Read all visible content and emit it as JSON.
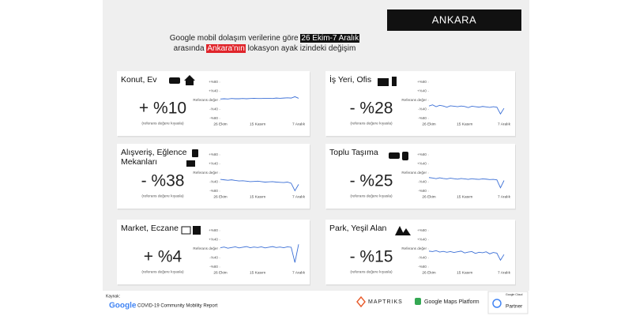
{
  "header": {
    "city": "ANKARA",
    "subtitle": [
      "Google mobil dolaşım verilerine göre ",
      "26 Ekim-7 Aralık",
      "arasında ",
      "Ankara'nın",
      " lokasyon ayak izindeki değişim"
    ]
  },
  "footer": {
    "source_label": "Kaynak:",
    "google": "Google",
    "source": "COVID-19 Community Mobility Report",
    "maptriks": "MAPTRIKS",
    "maps_platform": "Google Maps Platform",
    "cloud": "Google Cloud",
    "partner": "Partner"
  },
  "chart_data": [
    {
      "type": "line",
      "title": "Konut, Ev",
      "headline": "+ %10",
      "note": "(referans değere kıyasla)",
      "categories": [
        "26 Ekim",
        null,
        null,
        null,
        null,
        null,
        null,
        null,
        null,
        null,
        "15 Kasım",
        null,
        null,
        null,
        null,
        null,
        null,
        null,
        null,
        null,
        null,
        "7 Aralık"
      ],
      "series": [
        {
          "color": "#3b6fd6",
          "values": [
            6,
            7,
            6,
            8,
            7,
            7,
            8,
            7,
            8,
            9,
            8,
            8,
            9,
            9,
            8,
            10,
            9,
            10,
            11,
            10,
            16,
            9
          ]
        }
      ],
      "ylim": [
        -80,
        80
      ],
      "yticks": [
        {
          "value": 80,
          "label": "+%80"
        },
        {
          "value": 40,
          "label": "+%40"
        },
        {
          "value": 0,
          "label": "Referans değer"
        },
        {
          "value": -40,
          "label": "-%40"
        },
        {
          "value": -80,
          "label": "-%80"
        }
      ]
    },
    {
      "type": "line",
      "title": "İş Yeri, Ofis",
      "headline": "- %28",
      "note": "(referans değere kıyasla)",
      "categories": [
        "26 Ekim",
        null,
        null,
        null,
        null,
        null,
        null,
        null,
        null,
        null,
        "15 Kasım",
        null,
        null,
        null,
        null,
        null,
        null,
        null,
        null,
        null,
        null,
        "7 Aralık"
      ],
      "series": [
        {
          "color": "#3b6fd6",
          "values": [
            -25,
            -20,
            -28,
            -22,
            -25,
            -30,
            -24,
            -26,
            -28,
            -25,
            -27,
            -32,
            -26,
            -28,
            -30,
            -27,
            -29,
            -31,
            -28,
            -30,
            -60,
            -35
          ]
        }
      ],
      "ylim": [
        -80,
        80
      ],
      "yticks": [
        {
          "value": 80,
          "label": "+%80"
        },
        {
          "value": 40,
          "label": "+%40"
        },
        {
          "value": 0,
          "label": "Referans değer"
        },
        {
          "value": -40,
          "label": "-%40"
        },
        {
          "value": -80,
          "label": "-%80"
        }
      ]
    },
    {
      "type": "line",
      "title": "Alışveriş, Eğlence Mekanları",
      "headline": "- %38",
      "note": "(referans değere kıyasla)",
      "categories": [
        "26 Ekim",
        null,
        null,
        null,
        null,
        null,
        null,
        null,
        null,
        null,
        "15 Kasım",
        null,
        null,
        null,
        null,
        null,
        null,
        null,
        null,
        null,
        null,
        "7 Aralık"
      ],
      "series": [
        {
          "color": "#3b6fd6",
          "values": [
            -28,
            -30,
            -32,
            -30,
            -33,
            -35,
            -34,
            -36,
            -38,
            -37,
            -36,
            -38,
            -40,
            -39,
            -38,
            -40,
            -41,
            -42,
            -40,
            -45,
            -78,
            -50
          ]
        }
      ],
      "ylim": [
        -80,
        80
      ],
      "yticks": [
        {
          "value": 80,
          "label": "+%80"
        },
        {
          "value": 40,
          "label": "+%40"
        },
        {
          "value": 0,
          "label": "Referans değer"
        },
        {
          "value": -40,
          "label": "-%40"
        },
        {
          "value": -80,
          "label": "-%80"
        }
      ]
    },
    {
      "type": "line",
      "title": "Toplu Taşıma",
      "headline": "- %25",
      "note": "(referans değere kıyasla)",
      "categories": [
        "26 Ekim",
        null,
        null,
        null,
        null,
        null,
        null,
        null,
        null,
        null,
        "15 Kasım",
        null,
        null,
        null,
        null,
        null,
        null,
        null,
        null,
        null,
        null,
        "7 Aralık"
      ],
      "series": [
        {
          "color": "#3b6fd6",
          "values": [
            -20,
            -22,
            -25,
            -21,
            -24,
            -26,
            -23,
            -25,
            -27,
            -24,
            -26,
            -28,
            -25,
            -27,
            -28,
            -26,
            -27,
            -29,
            -28,
            -30,
            -65,
            -33
          ]
        }
      ],
      "ylim": [
        -80,
        80
      ],
      "yticks": [
        {
          "value": 80,
          "label": "+%80"
        },
        {
          "value": 40,
          "label": "+%40"
        },
        {
          "value": 0,
          "label": "Referans değer"
        },
        {
          "value": -40,
          "label": "-%40"
        },
        {
          "value": -80,
          "label": "-%80"
        }
      ]
    },
    {
      "type": "line",
      "title": "Market, Eczane",
      "headline": "+ %4",
      "note": "(referans değere kıyasla)",
      "categories": [
        "26 Ekim",
        null,
        null,
        null,
        null,
        null,
        null,
        null,
        null,
        null,
        "15 Kasım",
        null,
        null,
        null,
        null,
        null,
        null,
        null,
        null,
        null,
        null,
        "7 Aralık"
      ],
      "series": [
        {
          "color": "#3b6fd6",
          "values": [
            5,
            8,
            3,
            6,
            9,
            4,
            7,
            10,
            5,
            8,
            6,
            9,
            4,
            7,
            10,
            6,
            8,
            5,
            9,
            7,
            -60,
            20
          ]
        }
      ],
      "ylim": [
        -80,
        80
      ],
      "yticks": [
        {
          "value": 80,
          "label": "+%80"
        },
        {
          "value": 40,
          "label": "+%40"
        },
        {
          "value": 0,
          "label": "Referans değer"
        },
        {
          "value": -40,
          "label": "-%40"
        },
        {
          "value": -80,
          "label": "-%80"
        }
      ]
    },
    {
      "type": "line",
      "title": "Park, Yeşil Alan",
      "headline": "- %15",
      "note": "(referans değere kıyasla)",
      "categories": [
        "26 Ekim",
        null,
        null,
        null,
        null,
        null,
        null,
        null,
        null,
        null,
        "15 Kasım",
        null,
        null,
        null,
        null,
        null,
        null,
        null,
        null,
        null,
        null,
        "7 Aralık"
      ],
      "series": [
        {
          "color": "#3b6fd6",
          "values": [
            -10,
            -12,
            -8,
            -14,
            -11,
            -15,
            -12,
            -16,
            -13,
            -10,
            -18,
            -14,
            -12,
            -20,
            -15,
            -17,
            -13,
            -22,
            -16,
            -19,
            -50,
            -25
          ]
        }
      ],
      "ylim": [
        -80,
        80
      ],
      "yticks": [
        {
          "value": 80,
          "label": "+%80"
        },
        {
          "value": 40,
          "label": "+%40"
        },
        {
          "value": 0,
          "label": "Referans değer"
        },
        {
          "value": -40,
          "label": "-%40"
        },
        {
          "value": -80,
          "label": "-%80"
        }
      ]
    }
  ]
}
